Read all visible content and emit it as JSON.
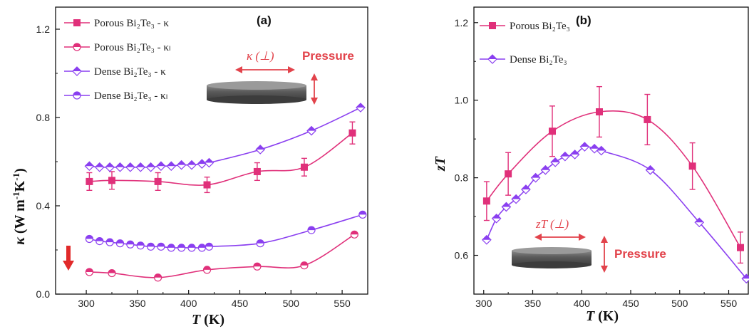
{
  "colors": {
    "pink": "#e0307a",
    "violet": "#8a3ff0",
    "red": "#e2434b",
    "disk": "#5b5b5b"
  },
  "chart_data": [
    {
      "type": "line",
      "panel_label": "(a)",
      "xlabel": "T (K)",
      "ylabel": "κ (W m⁻¹K⁻¹)",
      "xlim": [
        270,
        575
      ],
      "ylim": [
        0.0,
        1.3
      ],
      "xticks": [
        "300",
        "350",
        "400",
        "450",
        "500",
        "550"
      ],
      "yticks": [
        "0.0",
        "0.4",
        "0.8",
        "1.2"
      ],
      "grid": false,
      "legend_position": "top-left",
      "annotation": "κ (⊥)",
      "pressure_label": "Pressure",
      "series": [
        {
          "name": "Porous Bi₂Te₃ - κ",
          "marker": "square",
          "color": "#e0307a",
          "x": [
            303,
            325,
            370,
            418,
            467,
            513,
            560
          ],
          "y": [
            0.51,
            0.515,
            0.51,
            0.495,
            0.555,
            0.575,
            0.73
          ],
          "err": [
            0.04,
            0.04,
            0.04,
            0.035,
            0.04,
            0.04,
            0.05
          ]
        },
        {
          "name": "Porous Bi₂Te₃ - κₗ",
          "marker": "half-circle",
          "color": "#e0307a",
          "x": [
            303,
            325,
            370,
            418,
            467,
            513,
            562
          ],
          "y": [
            0.1,
            0.095,
            0.075,
            0.11,
            0.125,
            0.13,
            0.27
          ]
        },
        {
          "name": "Dense Bi₂Te₃ - κ",
          "marker": "diamond",
          "color": "#8a3ff0",
          "x": [
            303,
            313,
            323,
            333,
            343,
            353,
            363,
            373,
            383,
            393,
            403,
            413,
            420,
            470,
            520,
            568
          ],
          "y": [
            0.58,
            0.575,
            0.575,
            0.575,
            0.575,
            0.575,
            0.575,
            0.58,
            0.58,
            0.585,
            0.585,
            0.59,
            0.595,
            0.655,
            0.74,
            0.845
          ]
        },
        {
          "name": "Dense Bi₂Te₃ - κₗ",
          "marker": "half-circle",
          "color": "#8a3ff0",
          "x": [
            303,
            313,
            323,
            333,
            343,
            353,
            363,
            373,
            383,
            393,
            403,
            413,
            420,
            470,
            520,
            570
          ],
          "y": [
            0.25,
            0.24,
            0.235,
            0.23,
            0.225,
            0.22,
            0.215,
            0.215,
            0.21,
            0.21,
            0.21,
            0.21,
            0.215,
            0.23,
            0.29,
            0.36
          ]
        }
      ]
    },
    {
      "type": "line",
      "panel_label": "(b)",
      "xlabel": "T (K)",
      "ylabel": "zT",
      "xlim": [
        290,
        570
      ],
      "ylim": [
        0.5,
        1.24
      ],
      "xticks": [
        "300",
        "350",
        "400",
        "450",
        "500",
        "550"
      ],
      "yticks": [
        "0.6",
        "0.8",
        "1.0",
        "1.2"
      ],
      "grid": false,
      "legend_position": "top-left",
      "annotation": "zT (⊥)",
      "pressure_label": "Pressure",
      "series": [
        {
          "name": "Porous Bi₂Te₃",
          "marker": "square",
          "color": "#e0307a",
          "x": [
            303,
            325,
            370,
            418,
            467,
            513,
            562
          ],
          "y": [
            0.74,
            0.81,
            0.92,
            0.97,
            0.95,
            0.83,
            0.62
          ],
          "err": [
            0.05,
            0.055,
            0.065,
            0.065,
            0.065,
            0.06,
            0.04
          ]
        },
        {
          "name": "Dense Bi₂Te₃",
          "marker": "diamond",
          "color": "#8a3ff0",
          "x": [
            303,
            313,
            323,
            333,
            343,
            353,
            363,
            373,
            383,
            393,
            403,
            413,
            420,
            470,
            520,
            568
          ],
          "y": [
            0.64,
            0.695,
            0.725,
            0.745,
            0.77,
            0.8,
            0.82,
            0.84,
            0.855,
            0.86,
            0.88,
            0.875,
            0.87,
            0.82,
            0.685,
            0.54
          ]
        }
      ]
    }
  ]
}
